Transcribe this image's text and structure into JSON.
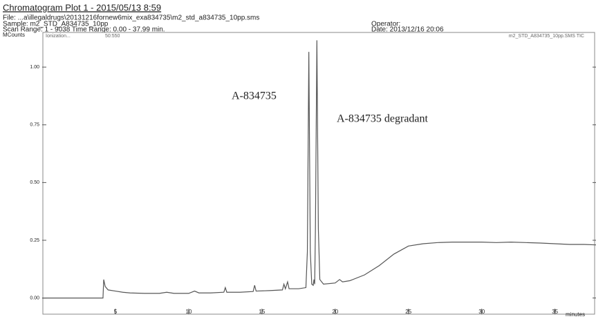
{
  "chart_data": {
    "type": "line",
    "title": "Chromatogram Plot 1 - 2015/05/13 8:59",
    "file": "File: ...a\\illegaldrugs\\20131216fornew6mix_exa834735\\m2_std_a834735_10pp.sms",
    "sample": "Sample: m2_STD_A834735_10pp",
    "operator": "Operator:",
    "scan_range": "Scan Range: 1 - 9038 Time Range: 0.00 - 37.99 min.",
    "date": "Date: 2013/12/16 20:06",
    "y_label": "MCounts",
    "x_label": "minutes",
    "ionization": "Ionization...",
    "mass_range": "50:550",
    "trace_name": "m2_STD_A834735_10pp.SMS TIC",
    "annotations": [
      "A-834735",
      "A-834735 degradant"
    ],
    "color": "#555555",
    "xlim": [
      0,
      37.8
    ],
    "ylim": [
      -0.07,
      1.15
    ],
    "xticks": [
      5,
      10,
      15,
      20,
      25,
      30,
      35
    ],
    "yticks": [
      {
        "value": 0,
        "label": "0.00"
      },
      {
        "value": 0.25,
        "label": "0.25"
      },
      {
        "value": 0.5,
        "label": "0.50"
      },
      {
        "value": 0.75,
        "label": "0.75"
      },
      {
        "value": 1,
        "label": "1.00"
      }
    ],
    "x": [
      0,
      4.15,
      4.2,
      4.3,
      4.5,
      5,
      5.5,
      6,
      7,
      8,
      8.5,
      9,
      10,
      10.4,
      10.7,
      11.5,
      12.4,
      12.5,
      12.6,
      13.5,
      14.4,
      14.5,
      14.6,
      15.5,
      16.4,
      16.5,
      16.6,
      16.75,
      16.85,
      17.5,
      18.0,
      18.1,
      18.2,
      18.3,
      18.4,
      18.5,
      18.55,
      18.6,
      18.65,
      18.75,
      18.85,
      18.95,
      19.2,
      20,
      20.3,
      20.5,
      21,
      22,
      23,
      24,
      25,
      26,
      27,
      28,
      29,
      30,
      31,
      32,
      33,
      34,
      35,
      36,
      37,
      37.8
    ],
    "values": [
      0,
      0,
      0.08,
      0.05,
      0.035,
      0.03,
      0.025,
      0.022,
      0.02,
      0.02,
      0.025,
      0.02,
      0.02,
      0.03,
      0.022,
      0.022,
      0.025,
      0.045,
      0.025,
      0.025,
      0.028,
      0.055,
      0.03,
      0.032,
      0.035,
      0.06,
      0.04,
      0.07,
      0.04,
      0.04,
      0.045,
      0.2,
      1.066,
      0.2,
      0.06,
      0.055,
      0.08,
      0.06,
      0.3,
      1.116,
      0.3,
      0.08,
      0.06,
      0.065,
      0.08,
      0.07,
      0.075,
      0.1,
      0.14,
      0.19,
      0.225,
      0.235,
      0.24,
      0.242,
      0.242,
      0.242,
      0.24,
      0.242,
      0.24,
      0.238,
      0.235,
      0.232,
      0.232,
      0.23
    ]
  }
}
